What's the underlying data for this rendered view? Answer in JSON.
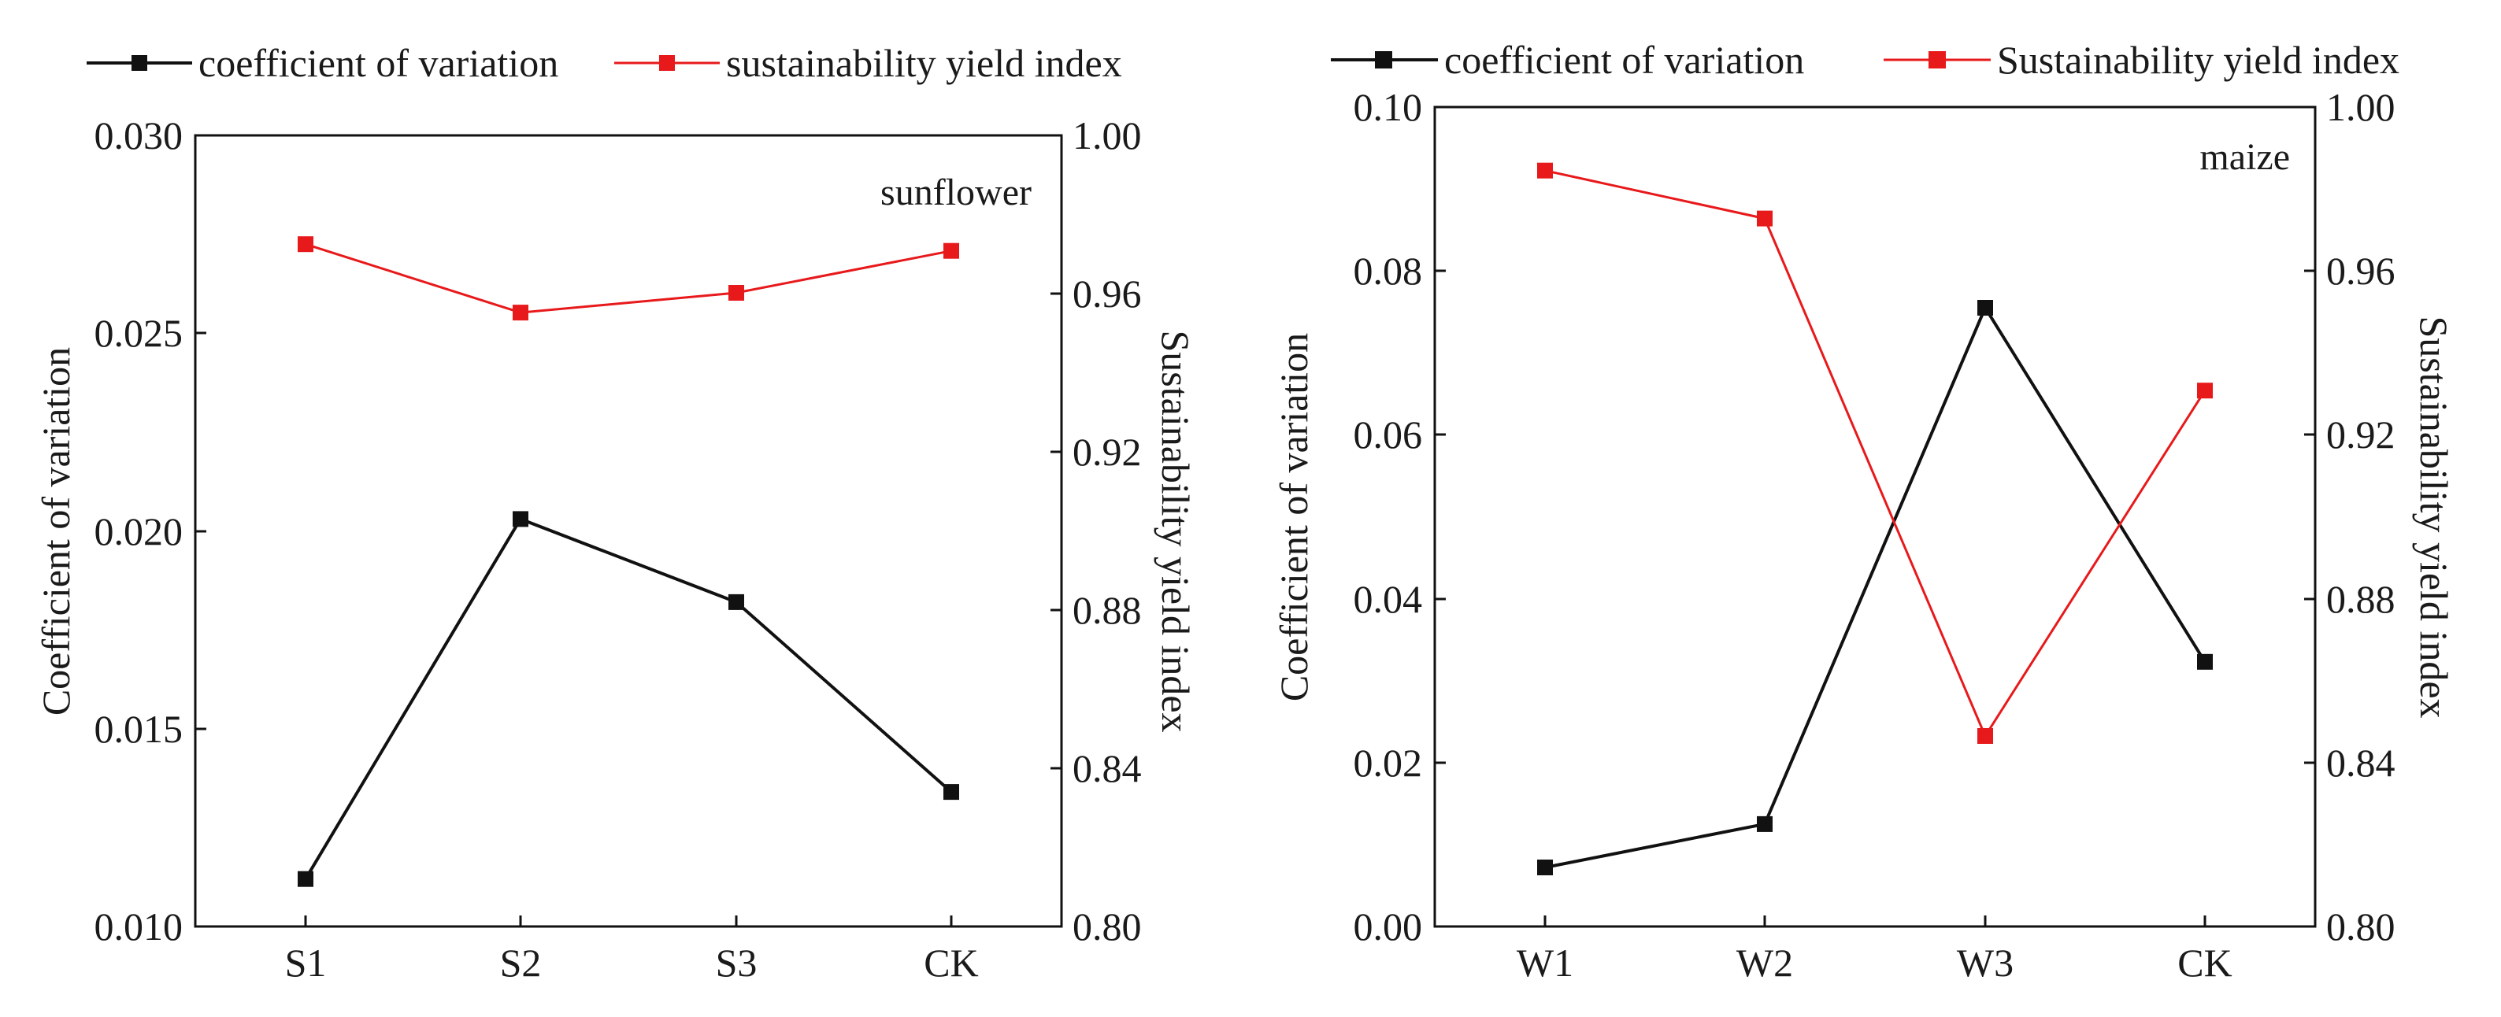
{
  "chart_data": [
    {
      "type": "line",
      "panel_label": "sunflower",
      "categories": [
        "S1",
        "S2",
        "S3",
        "CK"
      ],
      "ylabel": "Coefficient of variation",
      "ylabel_right": "Sustainability yield index",
      "ylim_left": [
        0.01,
        0.03
      ],
      "ylim_right": [
        0.8,
        1.0
      ],
      "yticks_left": [
        "0.010",
        "0.015",
        "0.020",
        "0.025",
        "0.030"
      ],
      "yticks_right": [
        "0.80",
        "0.84",
        "0.88",
        "0.92",
        "0.96",
        "1.00"
      ],
      "legend": [
        "coefficient of variation",
        "sustainability yield index"
      ],
      "series": [
        {
          "name": "coefficient of variation",
          "axis": "left",
          "color": "#111111",
          "values": [
            0.0112,
            0.0203,
            0.0182,
            0.0134
          ]
        },
        {
          "name": "sustainability yield index",
          "axis": "right",
          "color": "#e8191b",
          "values": [
            0.9725,
            0.9552,
            0.9602,
            0.9708
          ]
        }
      ]
    },
    {
      "type": "line",
      "panel_label": "maize",
      "categories": [
        "W1",
        "W2",
        "W3",
        "CK"
      ],
      "ylabel": "Coefficient of variation",
      "ylabel_right": "Sustainability yield index",
      "ylim_left": [
        0.0,
        0.1
      ],
      "ylim_right": [
        0.8,
        1.0
      ],
      "yticks_left": [
        "0.00",
        "0.02",
        "0.04",
        "0.06",
        "0.08",
        "0.10"
      ],
      "yticks_right": [
        "0.80",
        "0.84",
        "0.88",
        "0.92",
        "0.96",
        "1.00"
      ],
      "legend": [
        "coefficient of variation",
        "Sustainability yield index"
      ],
      "series": [
        {
          "name": "coefficient of variation",
          "axis": "left",
          "color": "#111111",
          "values": [
            0.0072,
            0.0125,
            0.0755,
            0.0323
          ]
        },
        {
          "name": "Sustainability yield index",
          "axis": "right",
          "color": "#e8191b",
          "values": [
            0.9845,
            0.9728,
            0.8465,
            0.9308
          ]
        }
      ]
    }
  ]
}
